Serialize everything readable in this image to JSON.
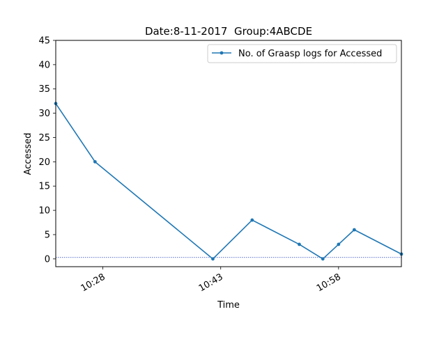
{
  "chart_data": {
    "type": "line",
    "title": "Date:8-11-2017  Group:4ABCDE",
    "xlabel": "Time",
    "ylabel": "Accessed",
    "ylim": [
      -1.6,
      45
    ],
    "xlim": [
      "10:22",
      "11:06"
    ],
    "yticks": [
      0,
      5,
      10,
      15,
      20,
      25,
      30,
      35,
      40,
      45
    ],
    "xticks": [
      "10:28",
      "10:43",
      "10:58"
    ],
    "grid": false,
    "legend_position": "top-right",
    "series": [
      {
        "name": "No. of Graasp logs for Accessed",
        "color": "#1f77b4",
        "x": [
          "10:22",
          "10:27",
          "10:42",
          "10:47",
          "10:53",
          "10:56",
          "10:58",
          "11:00",
          "11:06"
        ],
        "y": [
          32,
          20,
          0,
          8,
          3,
          0,
          3,
          6,
          1
        ]
      }
    ],
    "reference_line": {
      "y": 0.3,
      "color": "#1f3fb4",
      "style": "dotted"
    }
  }
}
